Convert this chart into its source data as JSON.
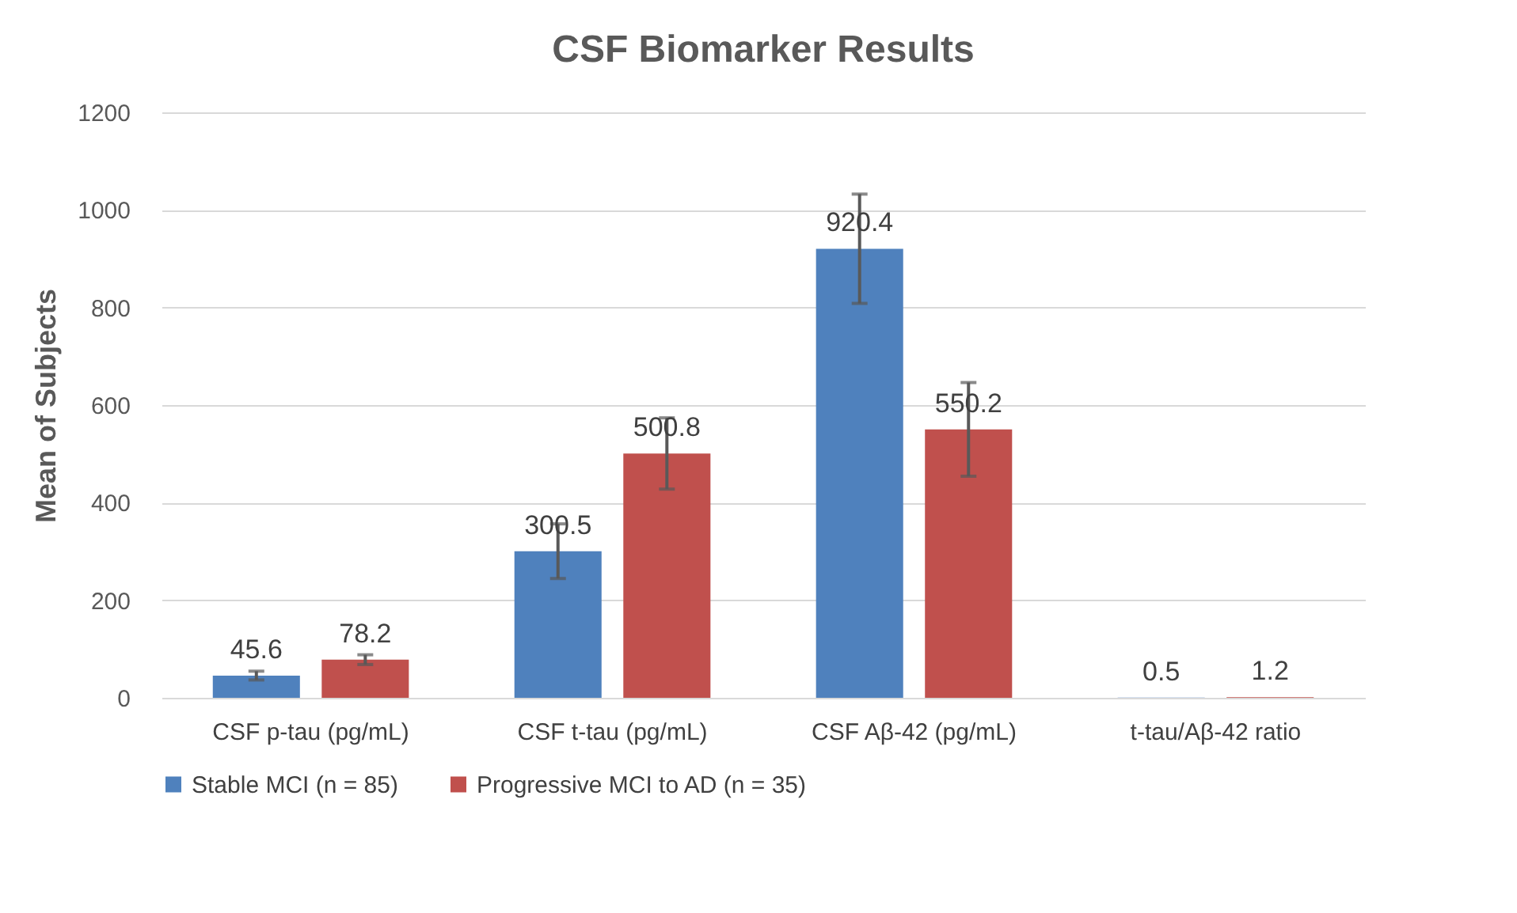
{
  "chart_data": {
    "type": "bar",
    "title": "CSF Biomarker Results",
    "ylabel": "Mean of Subjects",
    "categories": [
      "CSF p-tau (pg/mL)",
      "CSF t-tau (pg/mL)",
      "CSF Aβ-42 (pg/mL)",
      "t-tau/Aβ-42 ratio"
    ],
    "series": [
      {
        "name": "Stable MCI (n = 85)",
        "color": "#4f81bd",
        "values": [
          45.6,
          300.5,
          920.4,
          0.5
        ],
        "errors": [
          9,
          56,
          112,
          null
        ]
      },
      {
        "name": "Progressive MCI to AD (n = 35)",
        "color": "#c0504d",
        "values": [
          78.2,
          500.8,
          550.2,
          1.2
        ],
        "errors": [
          10,
          73,
          96,
          null
        ]
      }
    ],
    "ylim": [
      0,
      1200
    ],
    "yticks": [
      0,
      200,
      400,
      600,
      800,
      1000,
      1200
    ],
    "grid": "y",
    "legend": "bottom",
    "data_labels": true
  }
}
